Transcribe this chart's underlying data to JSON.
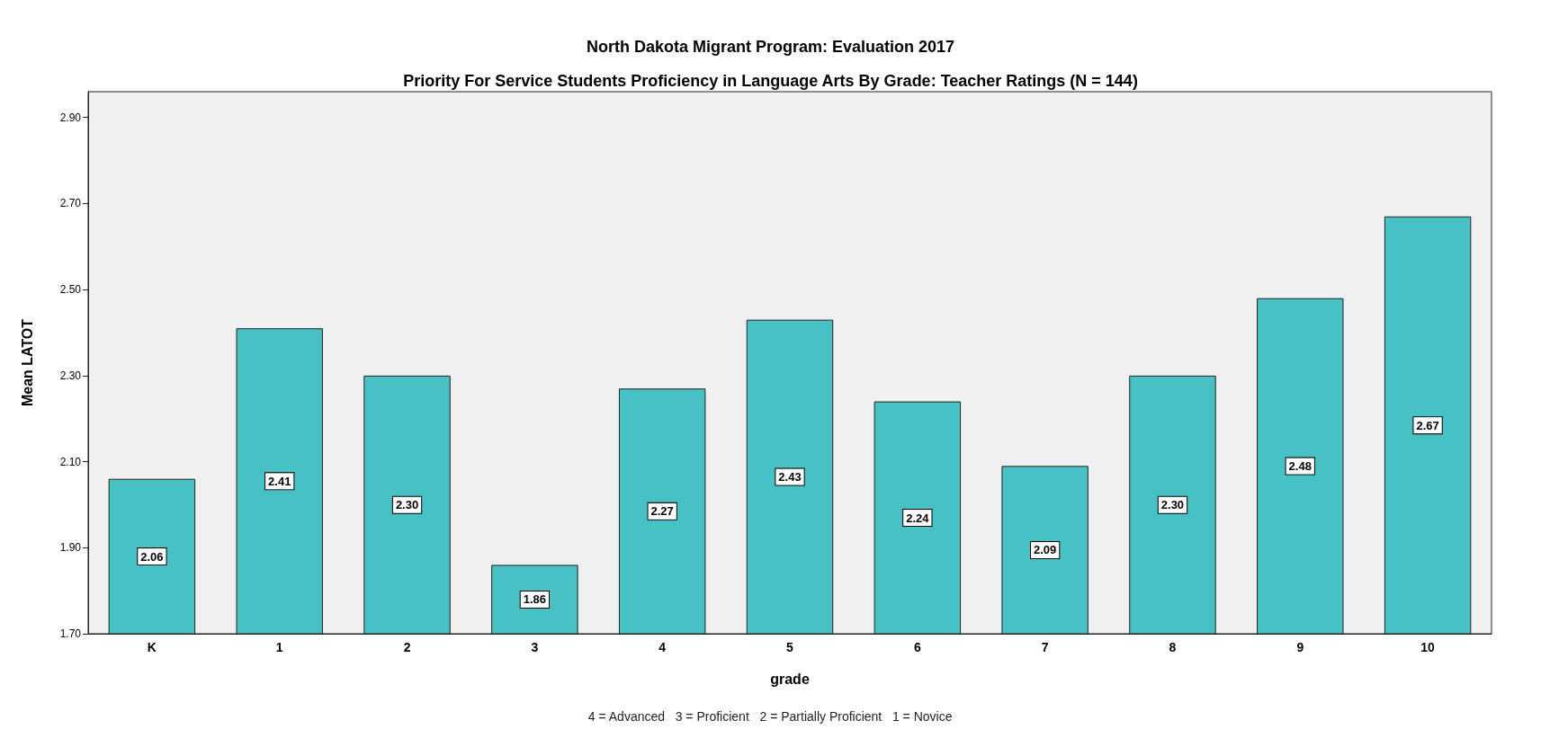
{
  "chart_data": {
    "type": "bar",
    "title": "North Dakota Migrant Program: Evaluation 2017",
    "subtitle": "Priority For Service Students Proficiency in Language Arts By Grade: Teacher Ratings (N = 144)",
    "xlabel": "grade",
    "ylabel": "Mean LATOT",
    "annotations": [
      "4 = Advanced   3 = Proficient   2 = Partially Proficient   1 = Novice"
    ],
    "categories": [
      "K",
      "1",
      "2",
      "3",
      "4",
      "5",
      "6",
      "7",
      "8",
      "9",
      "10"
    ],
    "values": [
      2.06,
      2.41,
      2.3,
      1.86,
      2.27,
      2.43,
      2.24,
      2.09,
      2.3,
      2.48,
      2.67
    ],
    "value_labels": [
      "2.06",
      "2.41",
      "2.30",
      "1.86",
      "2.27",
      "2.43",
      "2.24",
      "2.09",
      "2.30",
      "2.48",
      "2.67"
    ],
    "color": "#48c1c4",
    "ylim": [
      1.7,
      2.96
    ],
    "yticks": [
      {
        "value": 1.7,
        "label": "1.70"
      },
      {
        "value": 1.9,
        "label": "1.90"
      },
      {
        "value": 2.1,
        "label": "2.10"
      },
      {
        "value": 2.3,
        "label": "2.30"
      },
      {
        "value": 2.5,
        "label": "2.50"
      },
      {
        "value": 2.7,
        "label": "2.70"
      },
      {
        "value": 2.9,
        "label": "2.90"
      }
    ],
    "grid": false
  }
}
